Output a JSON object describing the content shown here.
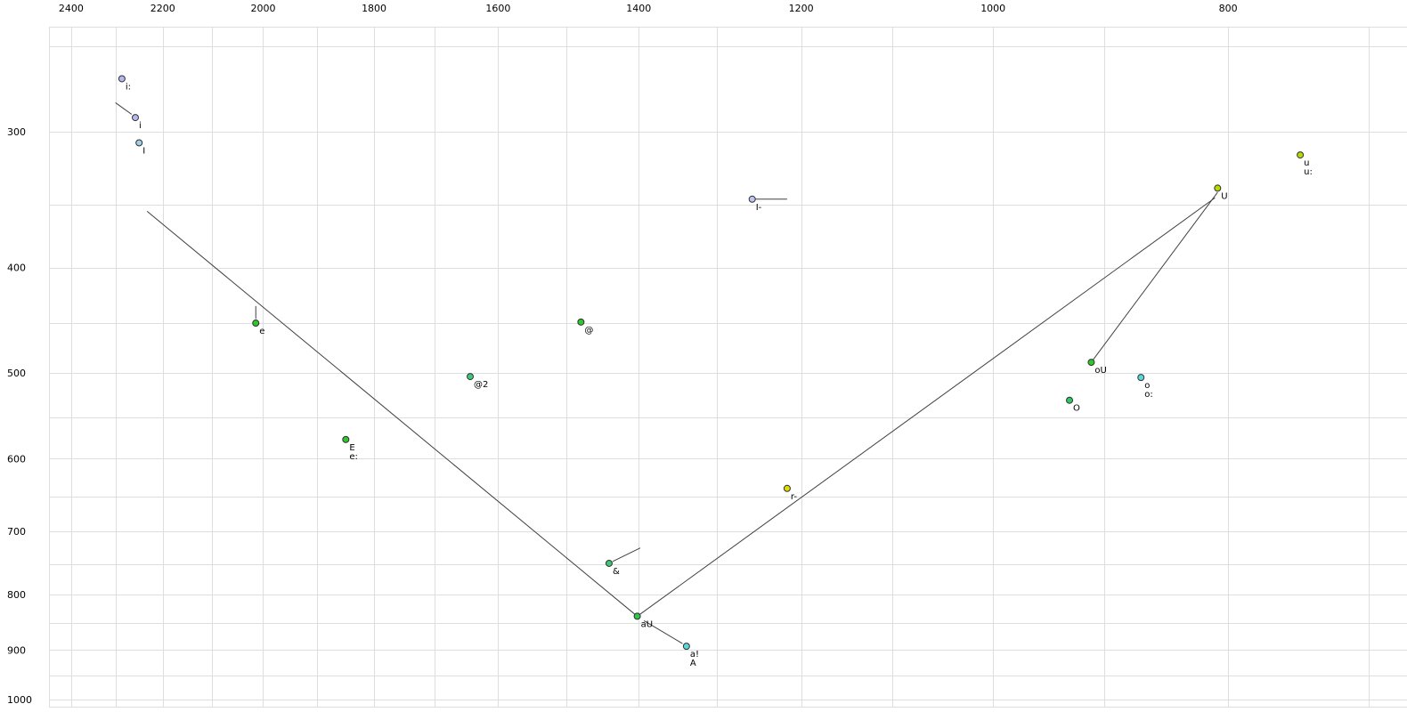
{
  "chart_data": {
    "type": "scatter",
    "title": "",
    "x_axis": {
      "label": "",
      "scale": "log",
      "reversed": true,
      "range": [
        2451,
        675
      ],
      "major_ticks": [
        2400,
        2200,
        2000,
        1800,
        1600,
        1400,
        1200,
        1000,
        800
      ],
      "grid_values": [
        2400,
        2300,
        2200,
        2100,
        2000,
        1900,
        1800,
        1700,
        1600,
        1500,
        1400,
        1300,
        1200,
        1100,
        1000,
        900,
        800,
        700
      ]
    },
    "y_axis": {
      "label": "",
      "scale": "log",
      "reversed": true,
      "range": [
        240,
        1017
      ],
      "major_ticks": [
        300,
        400,
        500,
        600,
        700,
        800,
        900,
        1000
      ],
      "grid_values": [
        250,
        300,
        350,
        400,
        450,
        500,
        550,
        600,
        650,
        700,
        750,
        800,
        850,
        900,
        950,
        1000
      ]
    },
    "grid": true,
    "background": "#ffffff",
    "grid_color": "#dedede",
    "line_color": "#404040",
    "text_color": "#000000",
    "marker": {
      "radius": 3.5,
      "stroke": "#303030"
    },
    "points": [
      {
        "labels": [
          "i:"
        ],
        "f2": 2287,
        "f1": 268,
        "color": "#b2b8f0"
      },
      {
        "labels": [
          "i"
        ],
        "f2": 2258,
        "f1": 291,
        "color": "#b2b8f0"
      },
      {
        "labels": [
          "I"
        ],
        "f2": 2250,
        "f1": 307,
        "color": "#a0d0ec"
      },
      {
        "labels": [
          "u",
          "u:"
        ],
        "f2": 747,
        "f1": 315,
        "color": "#b4da00"
      },
      {
        "labels": [
          "U"
        ],
        "f2": 808,
        "f1": 338,
        "color": "#b4da00"
      },
      {
        "labels": [
          "I-"
        ],
        "f2": 1257,
        "f1": 346,
        "color": "#c0c4f0"
      },
      {
        "labels": [
          "e"
        ],
        "f2": 2014,
        "f1": 450,
        "color": "#2cc82c"
      },
      {
        "labels": [
          "@"
        ],
        "f2": 1479,
        "f1": 449,
        "color": "#2cc82c"
      },
      {
        "labels": [
          "@2"
        ],
        "f2": 1643,
        "f1": 504,
        "color": "#3cc878"
      },
      {
        "labels": [
          "E",
          "e:"
        ],
        "f2": 1849,
        "f1": 576,
        "color": "#2cc82c"
      },
      {
        "labels": [
          "oU"
        ],
        "f2": 911,
        "f1": 489,
        "color": "#2cc82c"
      },
      {
        "labels": [
          "o",
          "o:"
        ],
        "f2": 869,
        "f1": 505,
        "color": "#5ad8d8"
      },
      {
        "labels": [
          "O"
        ],
        "f2": 930,
        "f1": 530,
        "color": "#2cc864"
      },
      {
        "labels": [
          "r-"
        ],
        "f2": 1216,
        "f1": 639,
        "color": "#e0dc00"
      },
      {
        "labels": [
          "&"
        ],
        "f2": 1440,
        "f1": 749,
        "color": "#3cc878"
      },
      {
        "labels": [
          "aU"
        ],
        "f2": 1402,
        "f1": 838,
        "color": "#2cc84c"
      },
      {
        "labels": [
          "a!",
          "A"
        ],
        "f2": 1338,
        "f1": 893,
        "color": "#5ad8d8"
      }
    ],
    "segments": [
      {
        "from": [
          2233,
          355
        ],
        "to": [
          1402,
          838
        ]
      },
      {
        "from": [
          1402,
          838
        ],
        "to": [
          810,
          345
        ]
      },
      {
        "from": [
          808,
          341
        ],
        "to": [
          911,
          489
        ]
      },
      {
        "from": [
          2301,
          282
        ],
        "to": [
          2266,
          289
        ]
      },
      {
        "from": [
          2014,
          434
        ],
        "to": [
          2014,
          446
        ]
      },
      {
        "from": [
          1253,
          346
        ],
        "to": [
          1216,
          346
        ]
      },
      {
        "from": [
          1435,
          746
        ],
        "to": [
          1398,
          725
        ]
      },
      {
        "from": [
          1393,
          846
        ],
        "to": [
          1343,
          888
        ]
      }
    ]
  }
}
